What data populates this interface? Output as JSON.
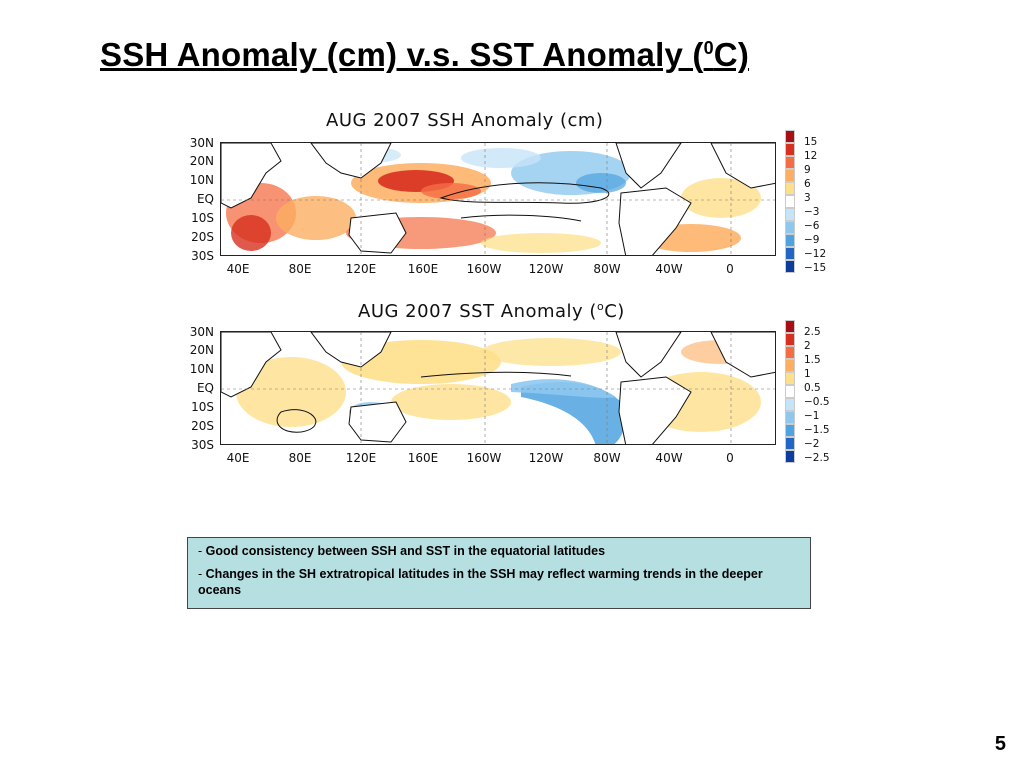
{
  "slide": {
    "title_main": "SSH Anomaly (cm) v.s. SST Anomaly (",
    "title_sup": "0",
    "title_end": "C)",
    "page_number": "5"
  },
  "maps": [
    {
      "title": "AUG 2007 SSH Anomaly (cm)",
      "lat_labels": [
        "30N",
        "20N",
        "10N",
        "EQ",
        "10S",
        "20S",
        "30S"
      ],
      "lon_labels": [
        "40E",
        "80E",
        "120E",
        "160E",
        "160W",
        "120W",
        "80W",
        "40W",
        "0"
      ],
      "colorbar_labels": [
        "15",
        "12",
        "9",
        "6",
        "3",
        "−3",
        "−6",
        "−9",
        "−12",
        "−15"
      ],
      "colorbar_colors": [
        "#a50f15",
        "#d7301f",
        "#f46d43",
        "#fdae61",
        "#fee08b",
        "#ffffff",
        "#c6e4f7",
        "#8ec8ef",
        "#4fa3e0",
        "#2166c4",
        "#0b3c9e"
      ]
    },
    {
      "title_main": "AUG 2007 SST Anomaly (",
      "title_sup": "o",
      "title_end": "C)",
      "lat_labels": [
        "30N",
        "20N",
        "10N",
        "EQ",
        "10S",
        "20S",
        "30S"
      ],
      "lon_labels": [
        "40E",
        "80E",
        "120E",
        "160E",
        "160W",
        "120W",
        "80W",
        "40W",
        "0"
      ],
      "colorbar_labels": [
        "2.5",
        "2",
        "1.5",
        "1",
        "0.5",
        "−0.5",
        "−1",
        "−1.5",
        "−2",
        "−2.5"
      ],
      "colorbar_colors": [
        "#a50f15",
        "#d7301f",
        "#f46d43",
        "#fdae61",
        "#fee08b",
        "#ffffff",
        "#c6e4f7",
        "#8ec8ef",
        "#4fa3e0",
        "#2166c4",
        "#0b3c9e"
      ]
    }
  ],
  "notes": [
    "Good consistency between SSH and SST in the equatorial latitudes",
    "Changes in the SH extratropical latitudes in the SSH may reflect warming trends in the deeper oceans"
  ],
  "note_bullet": "-"
}
